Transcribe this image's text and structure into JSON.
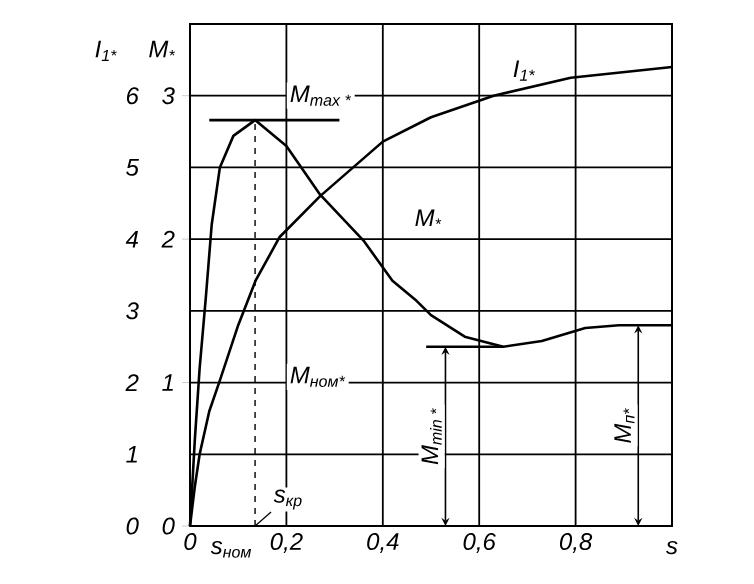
{
  "chart_data": {
    "type": "line",
    "xlim": [
      0,
      1
    ],
    "ylim": [
      0,
      7
    ],
    "y2lim": [
      0,
      3.5
    ],
    "xticks": [
      0,
      {
        "value": 0.2,
        "label": "0,2"
      },
      {
        "value": 0.4,
        "label": "0,4"
      },
      {
        "value": 0.6,
        "label": "0,6"
      },
      {
        "value": 0.8,
        "label": "0,8"
      },
      {
        "value": 1,
        "label": null
      }
    ],
    "yticks": [
      0,
      1,
      2,
      3,
      4,
      5,
      6
    ],
    "y2ticks": [
      0,
      1,
      2,
      3
    ],
    "xlabel": "s",
    "ylabel": "I$_{1*}$",
    "y2label": "M$_{*}$",
    "grid": true,
    "series": [
      {
        "name": "I$_{1*}$",
        "color": "#000000",
        "x": [
          0,
          0.01,
          0.02,
          0.04,
          0.062,
          0.1,
          0.136,
          0.186,
          0.27,
          0.4,
          0.5,
          0.63,
          0.79,
          1.0
        ],
        "values": [
          0,
          0.55,
          1.0,
          1.6,
          2.03,
          2.8,
          3.42,
          4.03,
          4.6,
          5.36,
          5.7,
          6.0,
          6.25,
          6.4
        ]
      },
      {
        "name": "M$_{*}$",
        "color": "#000000",
        "axis": "y2",
        "x": [
          0,
          0.01,
          0.02,
          0.033,
          0.045,
          0.062,
          0.09,
          0.135,
          0.2,
          0.27,
          0.36,
          0.42,
          0.47,
          0.5,
          0.57,
          0.65,
          0.73,
          0.82,
          0.89,
          1.0
        ],
        "values": [
          0,
          0.6,
          1.1,
          1.6,
          2.1,
          2.5,
          2.72,
          2.83,
          2.65,
          2.31,
          1.99,
          1.71,
          1.57,
          1.47,
          1.32,
          1.25,
          1.29,
          1.38,
          1.4,
          1.4
        ]
      },
      {
        "color": "#000000",
        "axis": "y2",
        "line_style": "dashed",
        "x": [
          0.135,
          0.135
        ],
        "values": [
          0,
          2.83
        ]
      },
      {
        "color": "#000000",
        "axis": "y2",
        "x": [
          0.04,
          0.31
        ],
        "values": [
          2.83,
          2.83
        ]
      },
      {
        "color": "#000000",
        "axis": "y2",
        "x": [
          0.49,
          0.65
        ],
        "values": [
          1.25,
          1.25
        ]
      }
    ],
    "annotations": [
      "M$_{max *}$",
      "M$_{ном*}$",
      {
        "text": "s$_{кр}$",
        "x": 0.135,
        "y": 0
      },
      {
        "text": "s$_{ном}$",
        "x": 0.02,
        "y": 0
      },
      "M$_{min *}$",
      "M$_{п*}$"
    ]
  }
}
